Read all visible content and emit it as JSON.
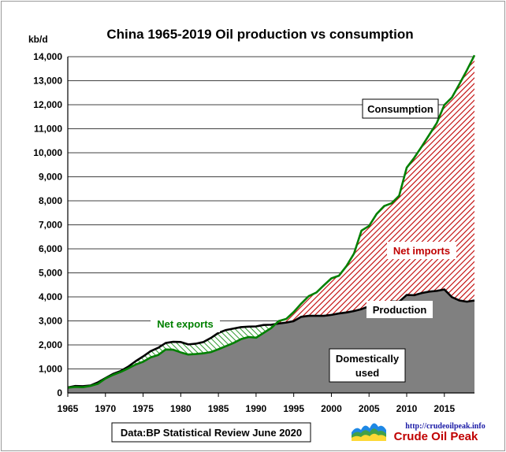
{
  "chart_data": {
    "type": "area",
    "title": "China  1965-2019 Oil production  vs consumption",
    "ylabel": "kb/d",
    "xlim": [
      1965,
      2019
    ],
    "ylim": [
      0,
      14000
    ],
    "yticks": [
      0,
      1000,
      2000,
      3000,
      4000,
      5000,
      6000,
      7000,
      8000,
      9000,
      10000,
      11000,
      12000,
      13000,
      14000
    ],
    "ytick_labels": [
      "0",
      "1,000",
      "2,000",
      "3,000",
      "4,000",
      "5,000",
      "6,000",
      "7,000",
      "8,000",
      "9,000",
      "10,000",
      "11,000",
      "12,000",
      "13,000",
      "14,000"
    ],
    "xticks": [
      1965,
      1970,
      1975,
      1980,
      1985,
      1990,
      1995,
      2000,
      2005,
      2010,
      2015
    ],
    "xtick_labels": [
      "1965",
      "1970",
      "1975",
      "1980",
      "1985",
      "1990",
      "1995",
      "2000",
      "2005",
      "2010",
      "2015"
    ],
    "grid": "horizontal",
    "x": [
      1965,
      1966,
      1967,
      1968,
      1969,
      1970,
      1971,
      1972,
      1973,
      1974,
      1975,
      1976,
      1977,
      1978,
      1979,
      1980,
      1981,
      1982,
      1983,
      1984,
      1985,
      1986,
      1987,
      1988,
      1989,
      1990,
      1991,
      1992,
      1993,
      1994,
      1995,
      1996,
      1997,
      1998,
      1999,
      2000,
      2001,
      2002,
      2003,
      2004,
      2005,
      2006,
      2007,
      2008,
      2009,
      2010,
      2011,
      2012,
      2013,
      2014,
      2015,
      2016,
      2017,
      2018,
      2019
    ],
    "series": [
      {
        "name": "Production",
        "color": "#000000",
        "values": [
          230,
          290,
          280,
          310,
          440,
          620,
          790,
          910,
          1090,
          1320,
          1520,
          1740,
          1880,
          2080,
          2130,
          2120,
          2020,
          2050,
          2120,
          2290,
          2500,
          2620,
          2680,
          2740,
          2760,
          2770,
          2830,
          2840,
          2890,
          2930,
          2990,
          3170,
          3210,
          3210,
          3210,
          3250,
          3310,
          3350,
          3410,
          3490,
          3610,
          3670,
          3730,
          3810,
          3800,
          4080,
          4070,
          4160,
          4220,
          4250,
          4310,
          3990,
          3850,
          3800,
          3850
        ]
      },
      {
        "name": "Consumption",
        "color": "#008000",
        "values": [
          220,
          250,
          240,
          290,
          380,
          600,
          750,
          870,
          1020,
          1180,
          1300,
          1480,
          1580,
          1810,
          1800,
          1690,
          1600,
          1620,
          1650,
          1700,
          1820,
          1950,
          2080,
          2240,
          2330,
          2300,
          2500,
          2700,
          2990,
          3080,
          3370,
          3720,
          4030,
          4180,
          4480,
          4770,
          4880,
          5280,
          5800,
          6760,
          6950,
          7450,
          7780,
          7900,
          8210,
          9380,
          9790,
          10260,
          10750,
          11240,
          11990,
          12300,
          12860,
          13440,
          14060
        ]
      }
    ],
    "annotations": {
      "net_exports": "Net exports",
      "net_imports": "Net imports",
      "consumption": "Consumption",
      "production": "Production",
      "domestic_line1": "Domestically",
      "domestic_line2": "used",
      "source": "Data:BP Statistical Review June 2020"
    },
    "colors": {
      "domestic_fill": "#808080",
      "imports_stripe": "#c00000",
      "exports_stripe": "#2e9a2e",
      "production_line": "#000000",
      "consumption_line": "#008000"
    }
  },
  "brand": {
    "url": "http://crudeoilpeak.info",
    "name": "Crude Oil Peak"
  }
}
